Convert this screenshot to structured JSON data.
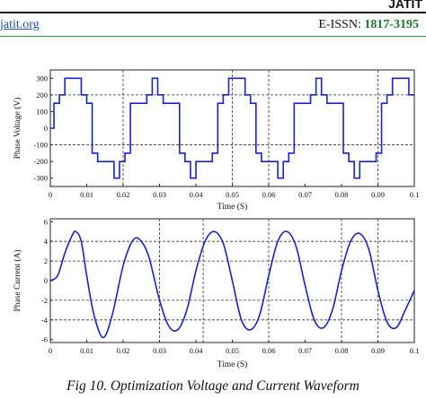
{
  "header": {
    "site": "jatit.org",
    "issn_label": "E-ISSN:",
    "issn_value": "1817-3195",
    "logo": "JATIT"
  },
  "caption": "Fig 10. Optimization Voltage and Current Waveform",
  "chart_data": [
    {
      "type": "line",
      "title": "",
      "xlabel": "Time (S)",
      "ylabel": "Phase Voltage (V)",
      "xlim": [
        0,
        0.1
      ],
      "ylim": [
        -350,
        350
      ],
      "xticks": [
        "0",
        "0.01",
        "0.02",
        "0.03",
        "0.04",
        "0.05",
        "0.06",
        "0.07",
        "0.08",
        "0.09",
        "0.1"
      ],
      "yticks": [
        "300",
        "200",
        "100",
        "0",
        "-100",
        "-200",
        "-300"
      ],
      "series": [
        {
          "x": [
            0,
            0.001,
            0.001,
            0.0025,
            0.0025,
            0.004,
            0.004,
            0.0085,
            0.0085,
            0.01,
            0.01,
            0.0115,
            0.0115,
            0.013,
            0.013,
            0.0175,
            0.0175,
            0.019,
            0.019,
            0.0205,
            0.0205,
            0.022,
            0.022,
            0.0265,
            0.0265,
            0.028,
            0.028,
            0.0295,
            0.0295,
            0.031,
            0.031,
            0.0355,
            0.0355,
            0.037,
            0.037,
            0.0385,
            0.0385,
            0.04,
            0.04,
            0.0445,
            0.0445,
            0.046,
            0.046,
            0.0475,
            0.0475,
            0.049,
            0.049,
            0.0535,
            0.0535,
            0.055,
            0.055,
            0.0565,
            0.0565,
            0.058,
            0.058,
            0.0625,
            0.0625,
            0.064,
            0.064,
            0.0655,
            0.0655,
            0.067,
            0.067,
            0.0715,
            0.0715,
            0.073,
            0.073,
            0.0745,
            0.0745,
            0.076,
            0.076,
            0.0805,
            0.0805,
            0.082,
            0.082,
            0.0835,
            0.0835,
            0.085,
            0.085,
            0.0895,
            0.0895,
            0.091,
            0.091,
            0.0925,
            0.0925,
            0.094,
            0.094,
            0.0985,
            0.0985,
            0.1
          ],
          "y": [
            0,
            0,
            150,
            150,
            200,
            200,
            300,
            300,
            200,
            200,
            150,
            150,
            -150,
            -150,
            -200,
            -200,
            -300,
            -300,
            -200,
            -200,
            -150,
            -150,
            150,
            150,
            200,
            200,
            300,
            300,
            200,
            200,
            150,
            150,
            -150,
            -150,
            -200,
            -200,
            -300,
            -300,
            -200,
            -200,
            -150,
            -150,
            150,
            150,
            200,
            200,
            300,
            300,
            200,
            200,
            150,
            150,
            -150,
            -150,
            -200,
            -200,
            -300,
            -300,
            -200,
            -200,
            -150,
            -150,
            150,
            150,
            200,
            200,
            300,
            300,
            200,
            200,
            150,
            150,
            -150,
            -150,
            -200,
            -200,
            -300,
            -300,
            -200,
            -200,
            -150,
            -150,
            150,
            150,
            200,
            200,
            300,
            300,
            200,
            200
          ]
        }
      ],
      "reference_lines_y": [
        200,
        -100
      ],
      "reference_lines_x": [
        0.02,
        0.05,
        0.06,
        0.09
      ]
    },
    {
      "type": "line",
      "title": "",
      "xlabel": "Time (S)",
      "ylabel": "Phase Current (A)",
      "xlim": [
        0,
        0.1
      ],
      "ylim": [
        -6.3,
        6.3
      ],
      "xticks": [
        "0",
        "0.01",
        "0.02",
        "0.03",
        "0.04",
        "0.05",
        "0.06",
        "0.07",
        "0.08",
        "0.09",
        "0.1"
      ],
      "yticks": [
        "6",
        "4",
        "2",
        "0",
        "-2",
        "-4",
        "-6"
      ],
      "series": [
        {
          "x": [
            0,
            0.002,
            0.004,
            0.006,
            0.007,
            0.0085,
            0.01,
            0.012,
            0.0145,
            0.017,
            0.02,
            0.0225,
            0.0245,
            0.027,
            0.03,
            0.0325,
            0.035,
            0.0375,
            0.04,
            0.0425,
            0.045,
            0.0475,
            0.05,
            0.0525,
            0.055,
            0.0575,
            0.06,
            0.0625,
            0.065,
            0.0675,
            0.07,
            0.0725,
            0.075,
            0.0775,
            0.08,
            0.0825,
            0.085,
            0.0875,
            0.09,
            0.0925,
            0.095,
            0.0975,
            0.1
          ],
          "y": [
            0.0,
            0.5,
            2.8,
            4.6,
            5.0,
            4.0,
            0.5,
            -3.5,
            -5.8,
            -3.5,
            1.5,
            4.0,
            4.2,
            2.5,
            -2.0,
            -4.6,
            -5.0,
            -3.0,
            1.0,
            4.0,
            5.0,
            3.8,
            0.0,
            -4.0,
            -5.0,
            -3.5,
            0.5,
            4.0,
            5.0,
            3.5,
            -0.5,
            -4.0,
            -4.8,
            -3.0,
            1.0,
            4.0,
            4.8,
            3.2,
            -1.0,
            -4.2,
            -4.8,
            -3.0,
            -1.0
          ]
        }
      ],
      "reference_lines_y": [
        4,
        2,
        -2,
        -4
      ],
      "reference_lines_x": [
        0.03,
        0.042,
        0.06,
        0.08,
        0.09
      ]
    }
  ]
}
